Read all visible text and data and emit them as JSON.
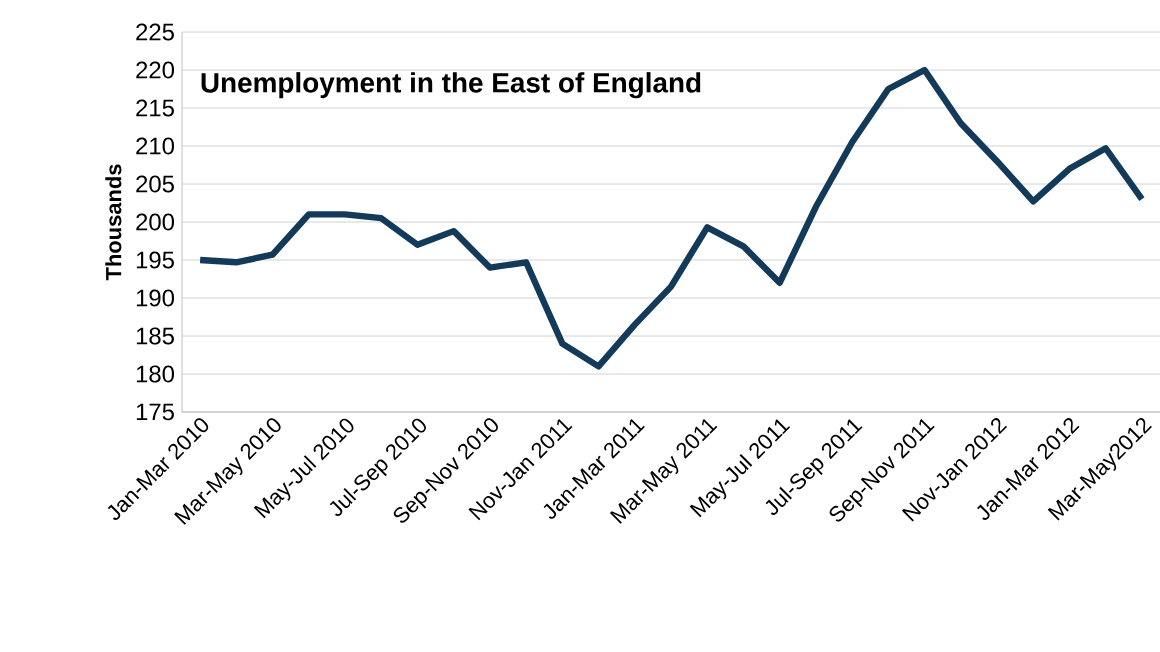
{
  "chart_data": {
    "type": "line",
    "title": "Unemployment in the East of England",
    "ylabel": "Thousands",
    "categories": [
      "Jan-Mar 2010",
      null,
      "Mar-May 2010",
      null,
      "May-Jul 2010",
      null,
      "Jul-Sep 2010",
      null,
      "Sep-Nov 2010",
      null,
      "Nov-Jan 2011",
      null,
      "Jan-Mar 2011",
      null,
      "Mar-May 2011",
      null,
      "May-Jul 2011",
      null,
      "Jul-Sep 2011",
      null,
      "Sep-Nov 2011",
      null,
      "Nov-Jan 2012",
      null,
      "Jan-Mar 2012",
      null,
      "Mar-May2012"
    ],
    "series": [
      {
        "color": "#133a58",
        "values": [
          195,
          194.7,
          195.7,
          201,
          201,
          200.5,
          197,
          198.8,
          194,
          194.7,
          184,
          181,
          186.5,
          191.5,
          199.3,
          196.8,
          192,
          202,
          210.5,
          217.5,
          220,
          213,
          208,
          202.7,
          207,
          209.7,
          203
        ]
      }
    ],
    "ylim": [
      175,
      225
    ],
    "yticks": [
      175,
      180,
      185,
      190,
      195,
      200,
      205,
      210,
      215,
      220,
      225
    ],
    "grid": "y",
    "marker": "none",
    "line_style": "solid"
  }
}
